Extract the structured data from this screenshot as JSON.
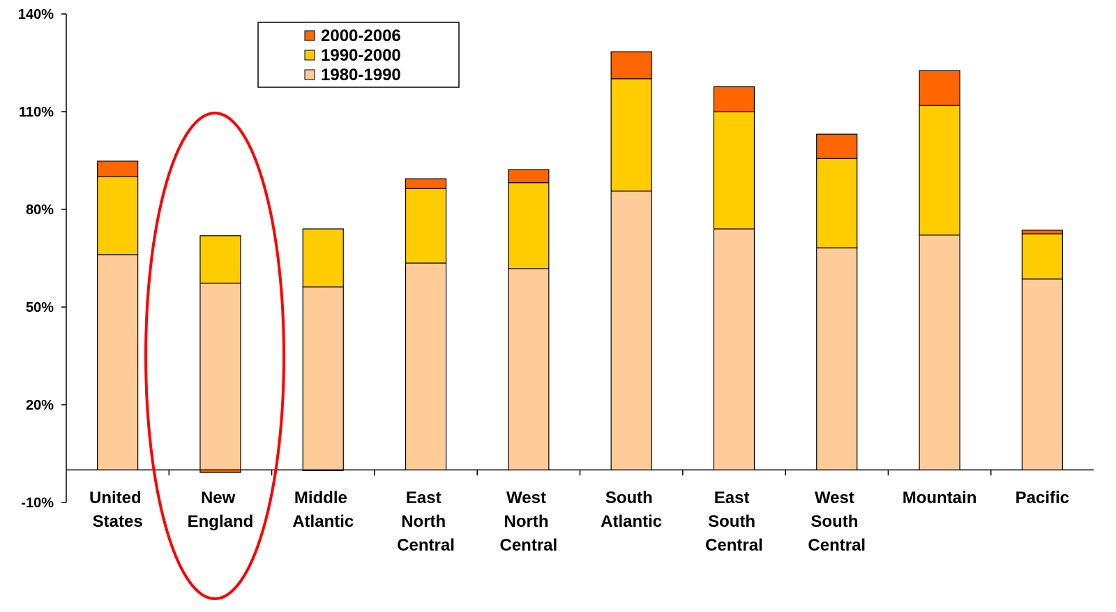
{
  "chart_data": {
    "type": "bar",
    "stacked": true,
    "categories": [
      "United States",
      "New England",
      "Middle Atlantic",
      "East North Central",
      "West North Central",
      "South Atlantic",
      "East South Central",
      "West South Central",
      "Mountain",
      "Pacific"
    ],
    "series": [
      {
        "name": "1980-1990",
        "color": "#FFCC99",
        "values": [
          66.1,
          57.3,
          56.2,
          63.5,
          61.8,
          85.6,
          74.0,
          68.2,
          72.1,
          58.6
        ]
      },
      {
        "name": "1990-2000",
        "color": "#FFCC00",
        "values": [
          24.0,
          14.6,
          17.8,
          22.9,
          26.4,
          34.5,
          36.0,
          27.4,
          39.8,
          13.9
        ]
      },
      {
        "name": "2000-2006",
        "color": "#FF6600",
        "values": [
          4.7,
          -0.8,
          -0.2,
          3.0,
          4.0,
          8.3,
          7.7,
          7.5,
          10.7,
          1.1
        ]
      }
    ],
    "ylim": [
      -10,
      140
    ],
    "yticks": [
      {
        "value": -10,
        "label": "-10%"
      },
      {
        "value": 20,
        "label": "20%"
      },
      {
        "value": 50,
        "label": "50%"
      },
      {
        "value": 80,
        "label": "80%"
      },
      {
        "value": 110,
        "label": "110%"
      },
      {
        "value": 140,
        "label": "140%"
      }
    ],
    "grid": false,
    "legend": "top-left"
  }
}
